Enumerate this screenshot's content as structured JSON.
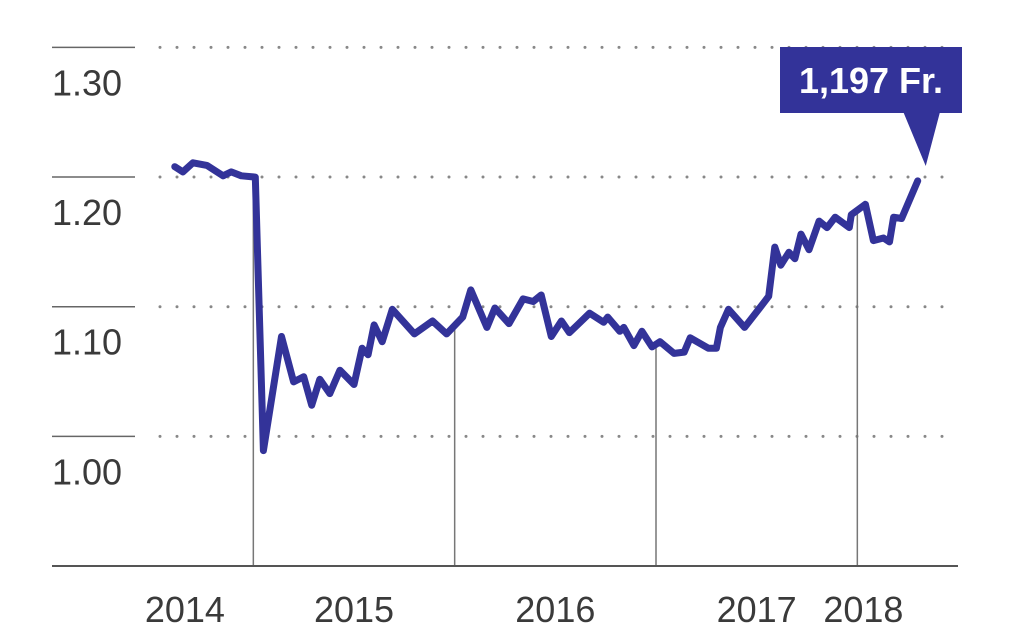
{
  "chart_data": {
    "type": "line",
    "title": "",
    "xlabel": "",
    "ylabel": "",
    "xlim": [
      2014.0,
      2018.5
    ],
    "ylim": [
      0.9,
      1.325
    ],
    "grid": "horizontal-dotted",
    "line_color": "#333399",
    "x_ticks": [
      2014,
      2015,
      2016,
      2017,
      2018
    ],
    "x_tick_labels": [
      "2014",
      "2015",
      "2016",
      "2017",
      "2018"
    ],
    "y_ticks": [
      1.0,
      1.1,
      1.2,
      1.3
    ],
    "y_tick_labels": [
      "1.00",
      "1.10",
      "1.20",
      "1.30"
    ],
    "year_separators": [
      2015,
      2016,
      2017,
      2018
    ],
    "annotation": {
      "label": "1,197 Fr.",
      "x": 2018.3,
      "y": 1.197,
      "color": "#333399"
    },
    "series": [
      {
        "x": [
          2014.61,
          2014.65,
          2014.7,
          2014.77,
          2014.85,
          2014.89,
          2014.94,
          2015.01,
          2015.05,
          2015.14,
          2015.2,
          2015.25,
          2015.29,
          2015.33,
          2015.38,
          2015.43,
          2015.5,
          2015.54,
          2015.57,
          2015.6,
          2015.64,
          2015.69,
          2015.8,
          2015.89,
          2015.96,
          2016.04,
          2016.08,
          2016.16,
          2016.2,
          2016.27,
          2016.34,
          2016.39,
          2016.43,
          2016.48,
          2016.53,
          2016.57,
          2016.61,
          2016.67,
          2016.74,
          2016.76,
          2016.82,
          2016.84,
          2016.89,
          2016.93,
          2016.98,
          2017.02,
          2017.09,
          2017.14,
          2017.17,
          2017.26,
          2017.3,
          2017.32,
          2017.36,
          2017.44,
          2017.52,
          2017.56,
          2017.59,
          2017.62,
          2017.66,
          2017.69,
          2017.72,
          2017.76,
          2017.81,
          2017.85,
          2017.89,
          2017.96,
          2017.97,
          2018.04,
          2018.08,
          2018.13,
          2018.16,
          2018.18,
          2018.22,
          2018.3
        ],
        "y": [
          1.208,
          1.204,
          1.211,
          1.209,
          1.201,
          1.204,
          1.201,
          1.2,
          0.989,
          1.077,
          1.042,
          1.046,
          1.024,
          1.044,
          1.033,
          1.051,
          1.04,
          1.068,
          1.063,
          1.086,
          1.073,
          1.098,
          1.079,
          1.089,
          1.079,
          1.092,
          1.113,
          1.084,
          1.099,
          1.087,
          1.106,
          1.104,
          1.109,
          1.077,
          1.089,
          1.08,
          1.086,
          1.095,
          1.088,
          1.092,
          1.081,
          1.084,
          1.07,
          1.081,
          1.069,
          1.073,
          1.064,
          1.065,
          1.076,
          1.068,
          1.068,
          1.084,
          1.098,
          1.084,
          1.1,
          1.108,
          1.146,
          1.132,
          1.142,
          1.137,
          1.156,
          1.144,
          1.166,
          1.161,
          1.169,
          1.161,
          1.171,
          1.179,
          1.151,
          1.153,
          1.15,
          1.169,
          1.168,
          1.197
        ]
      }
    ]
  }
}
